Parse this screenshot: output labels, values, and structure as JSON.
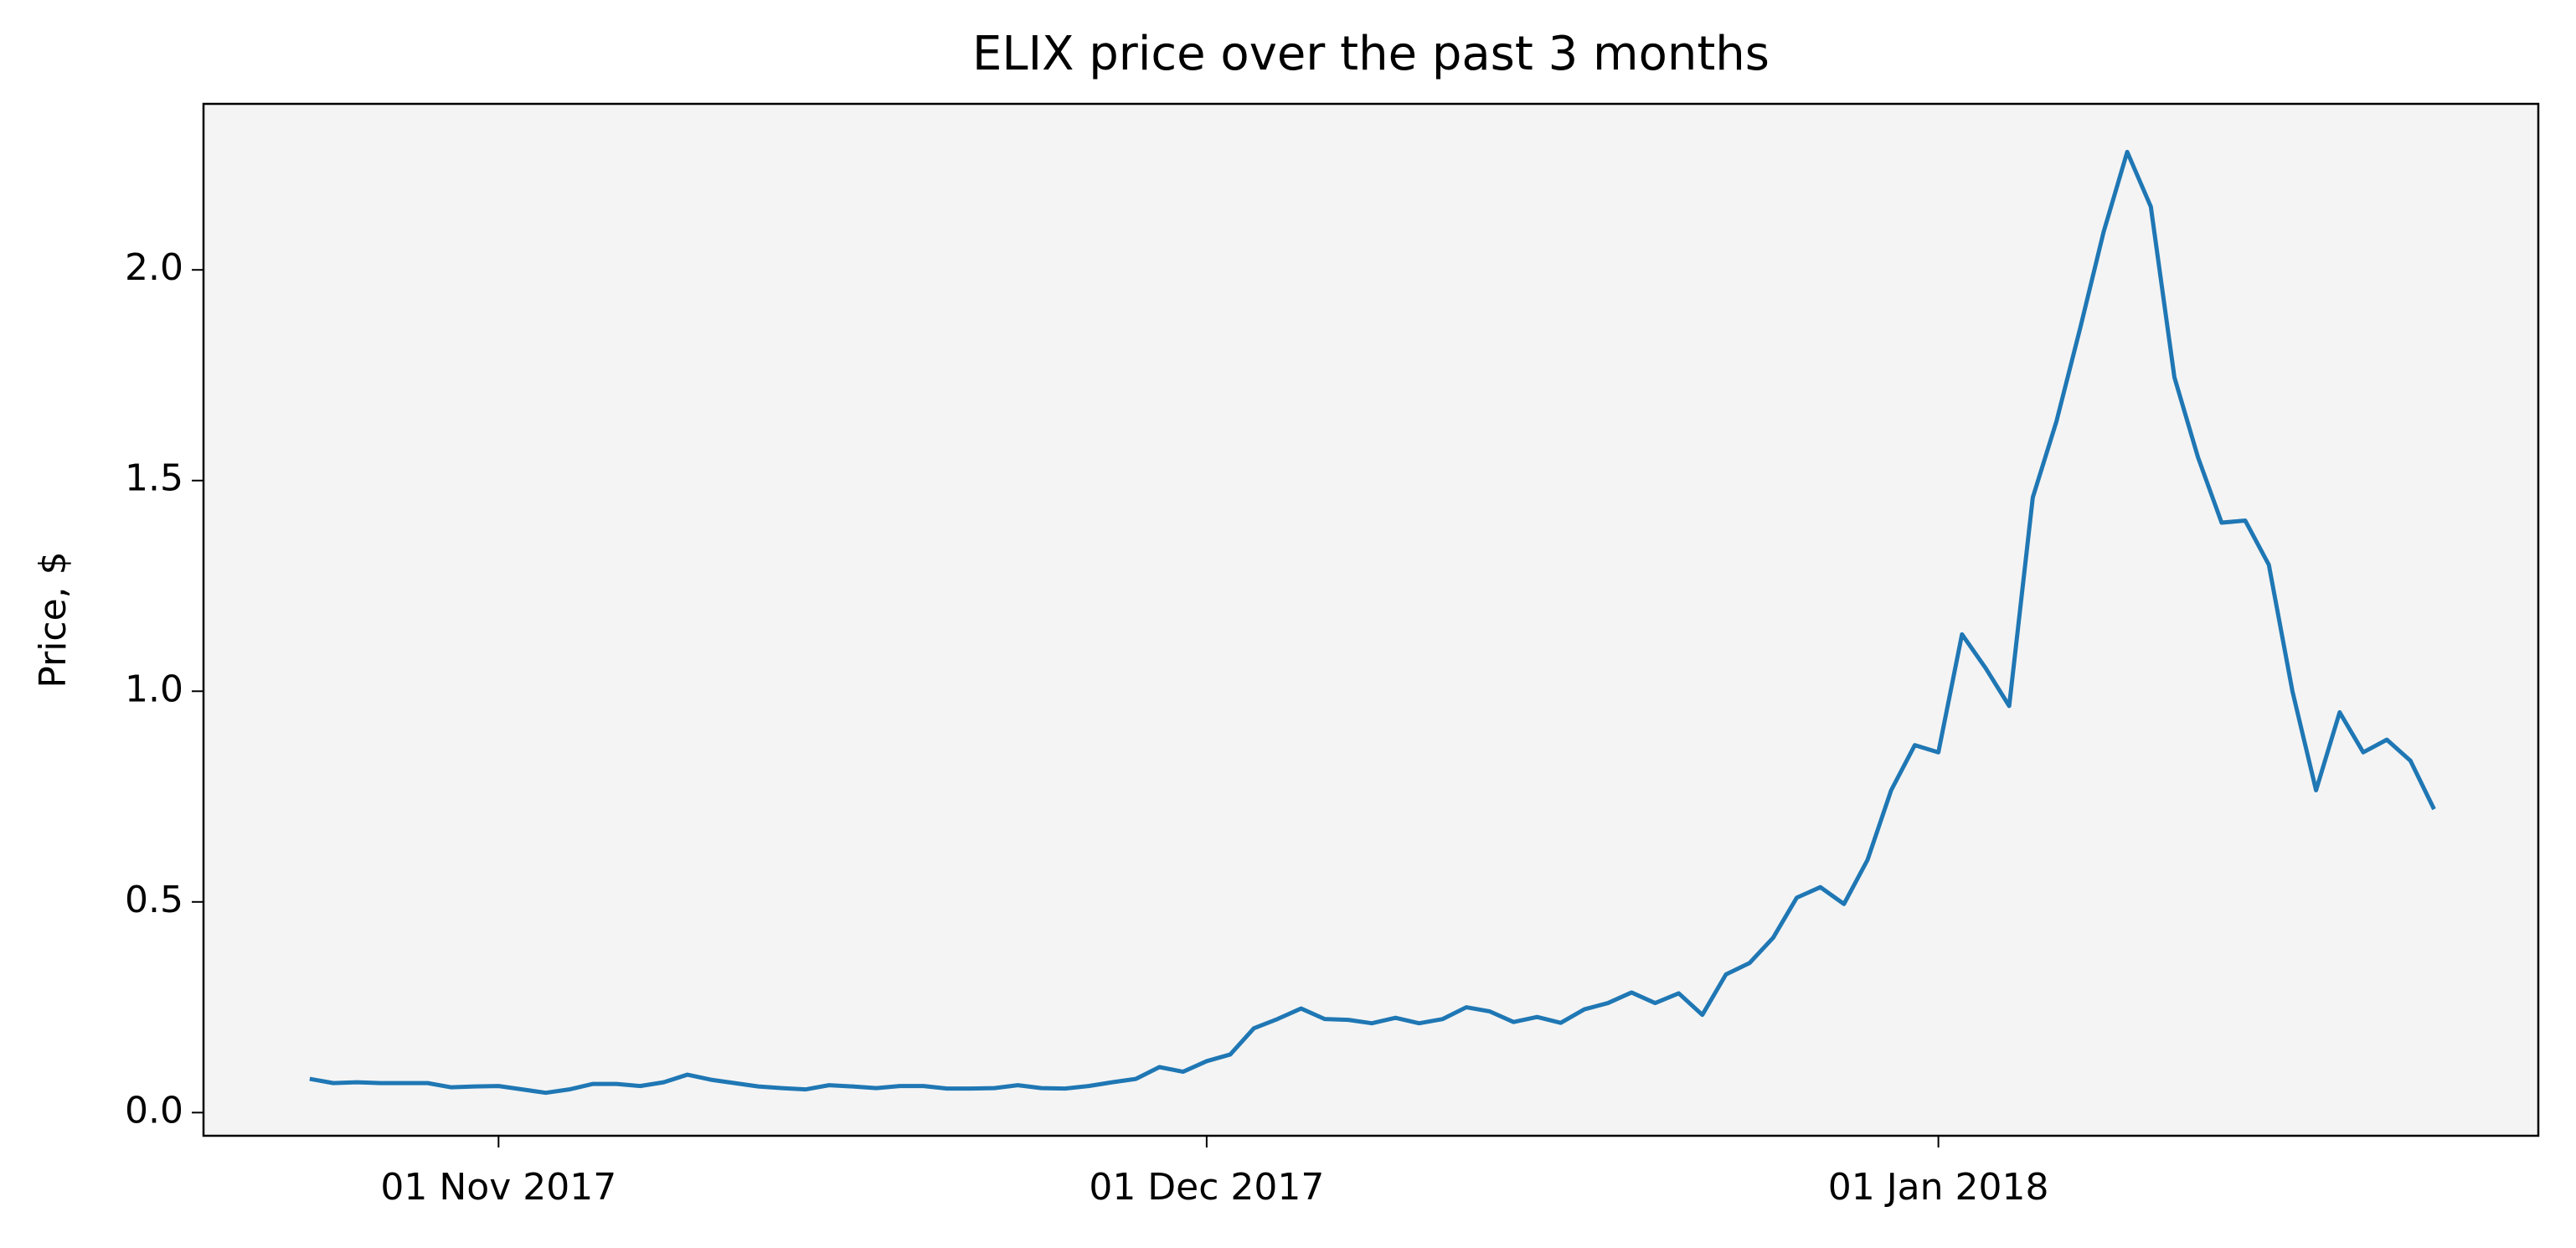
{
  "chart_data": {
    "type": "line",
    "title": "ELIX price over the past 3 months",
    "y_label": "Price, $",
    "x": [
      "2017-10-24",
      "2017-10-25",
      "2017-10-26",
      "2017-10-27",
      "2017-10-28",
      "2017-10-29",
      "2017-10-30",
      "2017-10-31",
      "2017-11-01",
      "2017-11-02",
      "2017-11-03",
      "2017-11-04",
      "2017-11-05",
      "2017-11-06",
      "2017-11-07",
      "2017-11-08",
      "2017-11-09",
      "2017-11-10",
      "2017-11-11",
      "2017-11-12",
      "2017-11-13",
      "2017-11-14",
      "2017-11-15",
      "2017-11-16",
      "2017-11-17",
      "2017-11-18",
      "2017-11-19",
      "2017-11-20",
      "2017-11-21",
      "2017-11-22",
      "2017-11-23",
      "2017-11-24",
      "2017-11-25",
      "2017-11-26",
      "2017-11-27",
      "2017-11-28",
      "2017-11-29",
      "2017-11-30",
      "2017-12-01",
      "2017-12-02",
      "2017-12-03",
      "2017-12-04",
      "2017-12-05",
      "2017-12-06",
      "2017-12-07",
      "2017-12-08",
      "2017-12-09",
      "2017-12-10",
      "2017-12-11",
      "2017-12-12",
      "2017-12-13",
      "2017-12-14",
      "2017-12-15",
      "2017-12-16",
      "2017-12-17",
      "2017-12-18",
      "2017-12-19",
      "2017-12-20",
      "2017-12-21",
      "2017-12-22",
      "2017-12-23",
      "2017-12-24",
      "2017-12-25",
      "2017-12-26",
      "2017-12-27",
      "2017-12-28",
      "2017-12-29",
      "2017-12-30",
      "2017-12-31",
      "2018-01-01",
      "2018-01-02",
      "2018-01-03",
      "2018-01-04",
      "2018-01-05",
      "2018-01-06",
      "2018-01-07",
      "2018-01-08",
      "2018-01-09",
      "2018-01-10",
      "2018-01-11",
      "2018-01-12",
      "2018-01-13",
      "2018-01-14",
      "2018-01-15",
      "2018-01-16",
      "2018-01-17",
      "2018-01-18",
      "2018-01-19",
      "2018-01-20",
      "2018-01-21",
      "2018-01-22"
    ],
    "series": [
      {
        "name": "ELIX",
        "color": "#1f77b4",
        "values": [
          0.08,
          0.07,
          0.072,
          0.07,
          0.07,
          0.07,
          0.06,
          0.062,
          0.063,
          0.055,
          0.047,
          0.055,
          0.068,
          0.068,
          0.063,
          0.072,
          0.09,
          0.078,
          0.07,
          0.062,
          0.058,
          0.055,
          0.065,
          0.062,
          0.058,
          0.063,
          0.063,
          0.057,
          0.057,
          0.058,
          0.065,
          0.058,
          0.057,
          0.063,
          0.072,
          0.08,
          0.108,
          0.097,
          0.122,
          0.138,
          0.2,
          0.222,
          0.247,
          0.222,
          0.22,
          0.212,
          0.225,
          0.212,
          0.222,
          0.25,
          0.24,
          0.215,
          0.227,
          0.213,
          0.245,
          0.26,
          0.285,
          0.26,
          0.283,
          0.232,
          0.328,
          0.355,
          0.415,
          0.51,
          0.535,
          0.495,
          0.6,
          0.765,
          0.872,
          0.855,
          1.135,
          1.055,
          0.965,
          1.46,
          1.64,
          1.86,
          2.09,
          2.28,
          2.15,
          1.745,
          1.555,
          1.4,
          1.405,
          1.3,
          1.0,
          0.765,
          0.95,
          0.855,
          0.885,
          0.835,
          0.72
        ]
      }
    ],
    "xlim": [
      "2017-10-19T12:00:00Z",
      "2018-01-26T10:00:00Z"
    ],
    "xticks": [
      {
        "value": "2017-11-01",
        "label": "01 Nov 2017"
      },
      {
        "value": "2017-12-01",
        "label": "01 Dec 2017"
      },
      {
        "value": "2018-01-01",
        "label": "01 Jan 2018"
      }
    ],
    "ylim": [
      -0.055,
      2.394
    ],
    "yticks": [
      {
        "value": 0,
        "label": "0.0"
      },
      0.5,
      {
        "value": 1,
        "label": "1.0"
      },
      1.5,
      {
        "value": 2,
        "label": "2.0"
      }
    ],
    "background": "#f4f4f4",
    "grid": false
  }
}
